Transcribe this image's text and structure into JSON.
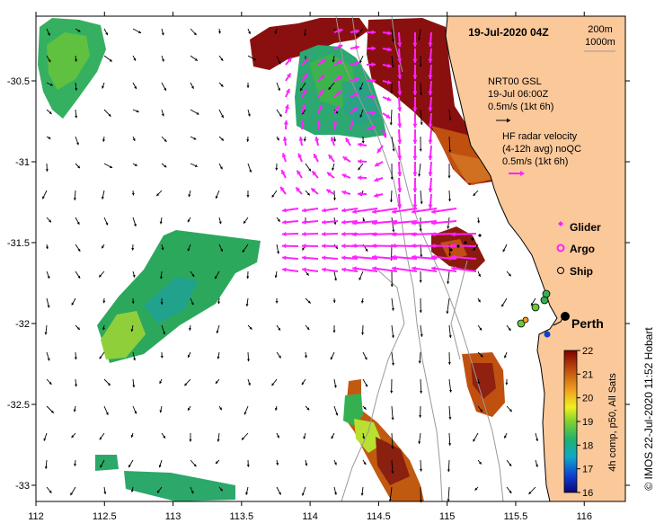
{
  "title": "19-Jul-2020 04Z",
  "depth_contours": [
    "200m",
    "1000m"
  ],
  "model_legend": {
    "line1": "NRT00 GSL",
    "line2": "19-Jul 06:00Z",
    "line3": "0.5m/s (1kt 6h)"
  },
  "radar_legend": {
    "line1": "HF radar velocity",
    "line2": "(4-12h avg) noQC",
    "line3": "0.5m/s (1kt 6h)"
  },
  "platforms": [
    {
      "name": "Glider",
      "color": "#ff22ff",
      "symbol": "diamond"
    },
    {
      "name": "Argo",
      "color": "#ff22ff",
      "symbol": "circle"
    },
    {
      "name": "Ship",
      "color": "#000000",
      "symbol": "circle"
    }
  ],
  "place_label": "Perth",
  "colorbar": {
    "ticks": [
      "16",
      "17",
      "18",
      "19",
      "20",
      "21",
      "22"
    ],
    "min": 16,
    "max": 22,
    "label": "4h comp, p50, All Sats"
  },
  "credit": "© IMOS 22-Jul-2020 11:52 Hobart",
  "x_axis": {
    "ticks": [
      "112",
      "112.5",
      "113",
      "113.5",
      "114",
      "114.5",
      "115",
      "115.5",
      "116"
    ],
    "min": 112,
    "max": 116.3
  },
  "y_axis": {
    "ticks": [
      "-30.5",
      "-31",
      "-31.5",
      "-32",
      "-32.5",
      "-33"
    ],
    "min": -33.1,
    "max": -30.1
  },
  "colors": {
    "land": "#fbc89a",
    "radar_arrow": "#ff22ff",
    "model_arrow": "#000000",
    "contour": "#999999"
  }
}
